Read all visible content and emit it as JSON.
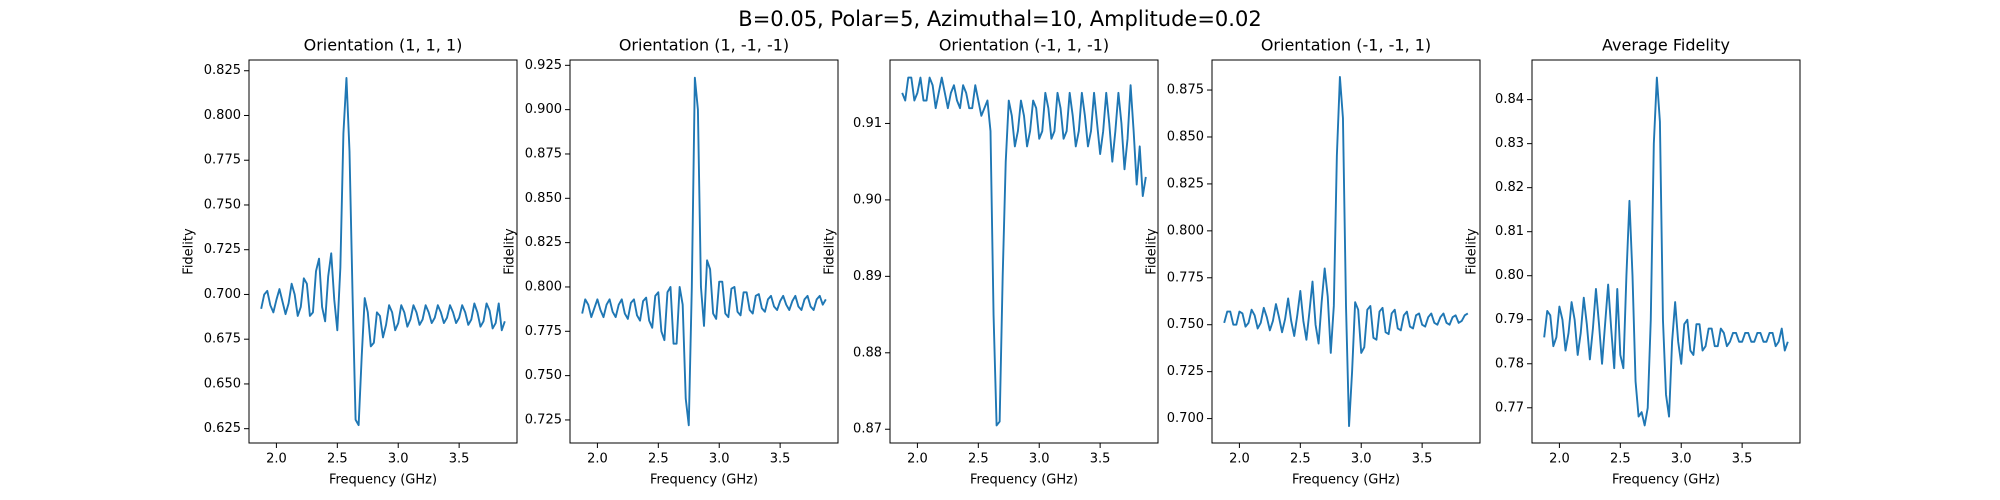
{
  "title": "B=0.05, Polar=5, Azimuthal=10, Amplitude=0.02",
  "chart_data": [
    {
      "type": "line",
      "title": "Orientation (1, 1, 1)",
      "xlabel": "Frequency (GHz)",
      "ylabel": "Fidelity",
      "color": "#1f77b4",
      "x": [
        1.875,
        1.9,
        1.925,
        1.95,
        1.975,
        2.0,
        2.025,
        2.05,
        2.075,
        2.1,
        2.125,
        2.15,
        2.175,
        2.2,
        2.225,
        2.25,
        2.275,
        2.3,
        2.325,
        2.35,
        2.375,
        2.4,
        2.425,
        2.45,
        2.475,
        2.5,
        2.525,
        2.55,
        2.575,
        2.6,
        2.625,
        2.65,
        2.675,
        2.7,
        2.725,
        2.75,
        2.775,
        2.8,
        2.825,
        2.85,
        2.875,
        2.9,
        2.925,
        2.95,
        2.975,
        3.0,
        3.025,
        3.05,
        3.075,
        3.1,
        3.125,
        3.15,
        3.175,
        3.2,
        3.225,
        3.25,
        3.275,
        3.3,
        3.325,
        3.35,
        3.375,
        3.4,
        3.425,
        3.45,
        3.475,
        3.5,
        3.525,
        3.55,
        3.575,
        3.6,
        3.625,
        3.65,
        3.675,
        3.7,
        3.725,
        3.75,
        3.775,
        3.8,
        3.825,
        3.85,
        3.875
      ],
      "values": [
        0.692,
        0.7,
        0.702,
        0.694,
        0.69,
        0.697,
        0.703,
        0.696,
        0.689,
        0.695,
        0.706,
        0.7,
        0.688,
        0.693,
        0.709,
        0.706,
        0.688,
        0.69,
        0.713,
        0.72,
        0.693,
        0.685,
        0.71,
        0.723,
        0.697,
        0.68,
        0.715,
        0.79,
        0.821,
        0.78,
        0.7,
        0.63,
        0.627,
        0.665,
        0.698,
        0.69,
        0.671,
        0.673,
        0.69,
        0.688,
        0.676,
        0.683,
        0.694,
        0.69,
        0.68,
        0.684,
        0.694,
        0.69,
        0.682,
        0.686,
        0.694,
        0.69,
        0.683,
        0.686,
        0.694,
        0.69,
        0.684,
        0.687,
        0.694,
        0.69,
        0.684,
        0.687,
        0.694,
        0.69,
        0.684,
        0.687,
        0.694,
        0.69,
        0.683,
        0.686,
        0.695,
        0.69,
        0.682,
        0.685,
        0.695,
        0.691,
        0.681,
        0.684,
        0.695,
        0.68,
        0.685
      ],
      "xlim": [
        1.775,
        3.975
      ],
      "xticks": [
        {
          "value": 2,
          "label": "2.0"
        },
        2.5,
        {
          "value": 3,
          "label": "3.0"
        },
        3.5
      ],
      "ylim": [
        0.617,
        0.831
      ],
      "yticks": [
        0.625,
        {
          "value": 0.65,
          "label": "0.650"
        },
        0.675,
        {
          "value": 0.7,
          "label": "0.700"
        },
        0.725,
        {
          "value": 0.75,
          "label": "0.750"
        },
        0.775,
        {
          "value": 0.8,
          "label": "0.800"
        },
        0.825
      ]
    },
    {
      "type": "line",
      "title": "Orientation (1, -1, -1)",
      "xlabel": "Frequency (GHz)",
      "ylabel": "Fidelity",
      "color": "#1f77b4",
      "x": [
        1.875,
        1.9,
        1.925,
        1.95,
        1.975,
        2.0,
        2.025,
        2.05,
        2.075,
        2.1,
        2.125,
        2.15,
        2.175,
        2.2,
        2.225,
        2.25,
        2.275,
        2.3,
        2.325,
        2.35,
        2.375,
        2.4,
        2.425,
        2.45,
        2.475,
        2.5,
        2.525,
        2.55,
        2.575,
        2.6,
        2.625,
        2.65,
        2.675,
        2.7,
        2.725,
        2.75,
        2.775,
        2.8,
        2.825,
        2.85,
        2.875,
        2.9,
        2.925,
        2.95,
        2.975,
        3.0,
        3.025,
        3.05,
        3.075,
        3.1,
        3.125,
        3.15,
        3.175,
        3.2,
        3.225,
        3.25,
        3.275,
        3.3,
        3.325,
        3.35,
        3.375,
        3.4,
        3.425,
        3.45,
        3.475,
        3.5,
        3.525,
        3.55,
        3.575,
        3.6,
        3.625,
        3.65,
        3.675,
        3.7,
        3.725,
        3.75,
        3.775,
        3.8,
        3.825,
        3.85,
        3.875
      ],
      "values": [
        0.785,
        0.793,
        0.79,
        0.783,
        0.788,
        0.793,
        0.787,
        0.783,
        0.79,
        0.793,
        0.786,
        0.783,
        0.79,
        0.793,
        0.785,
        0.782,
        0.791,
        0.793,
        0.784,
        0.781,
        0.792,
        0.794,
        0.781,
        0.777,
        0.795,
        0.797,
        0.775,
        0.77,
        0.797,
        0.8,
        0.768,
        0.768,
        0.8,
        0.79,
        0.737,
        0.722,
        0.8,
        0.918,
        0.9,
        0.8,
        0.778,
        0.815,
        0.81,
        0.785,
        0.782,
        0.803,
        0.803,
        0.785,
        0.783,
        0.799,
        0.8,
        0.786,
        0.784,
        0.797,
        0.797,
        0.787,
        0.785,
        0.795,
        0.796,
        0.788,
        0.786,
        0.793,
        0.795,
        0.789,
        0.787,
        0.792,
        0.795,
        0.79,
        0.787,
        0.792,
        0.795,
        0.789,
        0.787,
        0.793,
        0.795,
        0.789,
        0.787,
        0.793,
        0.795,
        0.79,
        0.793
      ],
      "xlim": [
        1.775,
        3.975
      ],
      "xticks": [
        {
          "value": 2,
          "label": "2.0"
        },
        2.5,
        {
          "value": 3,
          "label": "3.0"
        },
        3.5
      ],
      "ylim": [
        0.712,
        0.928
      ],
      "yticks": [
        0.725,
        {
          "value": 0.75,
          "label": "0.750"
        },
        0.775,
        {
          "value": 0.8,
          "label": "0.800"
        },
        0.825,
        {
          "value": 0.85,
          "label": "0.850"
        },
        0.875,
        {
          "value": 0.9,
          "label": "0.900"
        },
        0.925
      ]
    },
    {
      "type": "line",
      "title": "Orientation (-1, 1, -1)",
      "xlabel": "Frequency (GHz)",
      "ylabel": "Fidelity",
      "color": "#1f77b4",
      "x": [
        1.875,
        1.9,
        1.925,
        1.95,
        1.975,
        2.0,
        2.025,
        2.05,
        2.075,
        2.1,
        2.125,
        2.15,
        2.175,
        2.2,
        2.225,
        2.25,
        2.275,
        2.3,
        2.325,
        2.35,
        2.375,
        2.4,
        2.425,
        2.45,
        2.475,
        2.5,
        2.525,
        2.55,
        2.575,
        2.6,
        2.625,
        2.65,
        2.675,
        2.7,
        2.725,
        2.75,
        2.775,
        2.8,
        2.825,
        2.85,
        2.875,
        2.9,
        2.925,
        2.95,
        2.975,
        3.0,
        3.025,
        3.05,
        3.075,
        3.1,
        3.125,
        3.15,
        3.175,
        3.2,
        3.225,
        3.25,
        3.275,
        3.3,
        3.325,
        3.35,
        3.375,
        3.4,
        3.425,
        3.45,
        3.475,
        3.5,
        3.525,
        3.55,
        3.575,
        3.6,
        3.625,
        3.65,
        3.675,
        3.7,
        3.725,
        3.75,
        3.775,
        3.8,
        3.825,
        3.85,
        3.875
      ],
      "values": [
        0.914,
        0.913,
        0.916,
        0.916,
        0.913,
        0.914,
        0.916,
        0.913,
        0.913,
        0.916,
        0.915,
        0.912,
        0.914,
        0.916,
        0.914,
        0.912,
        0.914,
        0.915,
        0.913,
        0.912,
        0.915,
        0.914,
        0.912,
        0.912,
        0.915,
        0.913,
        0.911,
        0.912,
        0.913,
        0.909,
        0.885,
        0.8705,
        0.871,
        0.89,
        0.905,
        0.913,
        0.911,
        0.907,
        0.909,
        0.913,
        0.911,
        0.907,
        0.909,
        0.913,
        0.912,
        0.908,
        0.909,
        0.914,
        0.912,
        0.908,
        0.909,
        0.914,
        0.912,
        0.908,
        0.909,
        0.914,
        0.911,
        0.907,
        0.909,
        0.914,
        0.911,
        0.907,
        0.909,
        0.914,
        0.91,
        0.906,
        0.909,
        0.914,
        0.91,
        0.905,
        0.909,
        0.914,
        0.91,
        0.904,
        0.908,
        0.915,
        0.909,
        0.902,
        0.907,
        0.9005,
        0.903
      ],
      "xlim": [
        1.775,
        3.975
      ],
      "xticks": [
        {
          "value": 2,
          "label": "2.0"
        },
        2.5,
        {
          "value": 3,
          "label": "3.0"
        },
        3.5
      ],
      "ylim": [
        0.8682,
        0.9183
      ],
      "yticks": [
        0.87,
        0.88,
        0.89,
        {
          "value": 0.9,
          "label": "0.90"
        },
        0.91
      ]
    },
    {
      "type": "line",
      "title": "Orientation (-1, -1, 1)",
      "xlabel": "Frequency (GHz)",
      "ylabel": "Fidelity",
      "color": "#1f77b4",
      "x": [
        1.875,
        1.9,
        1.925,
        1.95,
        1.975,
        2.0,
        2.025,
        2.05,
        2.075,
        2.1,
        2.125,
        2.15,
        2.175,
        2.2,
        2.225,
        2.25,
        2.275,
        2.3,
        2.325,
        2.35,
        2.375,
        2.4,
        2.425,
        2.45,
        2.475,
        2.5,
        2.525,
        2.55,
        2.575,
        2.6,
        2.625,
        2.65,
        2.675,
        2.7,
        2.725,
        2.75,
        2.775,
        2.8,
        2.825,
        2.85,
        2.875,
        2.9,
        2.925,
        2.95,
        2.975,
        3.0,
        3.025,
        3.05,
        3.075,
        3.1,
        3.125,
        3.15,
        3.175,
        3.2,
        3.225,
        3.25,
        3.275,
        3.3,
        3.325,
        3.35,
        3.375,
        3.4,
        3.425,
        3.45,
        3.475,
        3.5,
        3.525,
        3.55,
        3.575,
        3.6,
        3.625,
        3.65,
        3.675,
        3.7,
        3.725,
        3.75,
        3.775,
        3.8,
        3.825,
        3.85,
        3.875
      ],
      "values": [
        0.751,
        0.757,
        0.757,
        0.75,
        0.75,
        0.757,
        0.756,
        0.749,
        0.751,
        0.758,
        0.755,
        0.748,
        0.751,
        0.759,
        0.754,
        0.747,
        0.752,
        0.761,
        0.754,
        0.746,
        0.753,
        0.764,
        0.752,
        0.744,
        0.755,
        0.768,
        0.752,
        0.742,
        0.757,
        0.773,
        0.75,
        0.74,
        0.762,
        0.78,
        0.765,
        0.735,
        0.76,
        0.84,
        0.882,
        0.86,
        0.76,
        0.696,
        0.725,
        0.762,
        0.758,
        0.735,
        0.738,
        0.758,
        0.76,
        0.743,
        0.742,
        0.757,
        0.759,
        0.746,
        0.745,
        0.756,
        0.758,
        0.748,
        0.747,
        0.755,
        0.757,
        0.749,
        0.748,
        0.755,
        0.756,
        0.75,
        0.749,
        0.754,
        0.756,
        0.751,
        0.75,
        0.754,
        0.756,
        0.751,
        0.75,
        0.754,
        0.755,
        0.751,
        0.752,
        0.755,
        0.756
      ],
      "xlim": [
        1.775,
        3.975
      ],
      "xticks": [
        {
          "value": 2,
          "label": "2.0"
        },
        2.5,
        {
          "value": 3,
          "label": "3.0"
        },
        3.5
      ],
      "ylim": [
        0.687,
        0.891
      ],
      "yticks": [
        {
          "value": 0.7,
          "label": "0.700"
        },
        0.725,
        {
          "value": 0.75,
          "label": "0.750"
        },
        0.775,
        {
          "value": 0.8,
          "label": "0.800"
        },
        0.825,
        {
          "value": 0.85,
          "label": "0.850"
        },
        0.875
      ]
    },
    {
      "type": "line",
      "title": "Average Fidelity",
      "xlabel": "Frequency (GHz)",
      "ylabel": "Fidelity",
      "color": "#1f77b4",
      "x": [
        1.875,
        1.9,
        1.925,
        1.95,
        1.975,
        2.0,
        2.025,
        2.05,
        2.075,
        2.1,
        2.125,
        2.15,
        2.175,
        2.2,
        2.225,
        2.25,
        2.275,
        2.3,
        2.325,
        2.35,
        2.375,
        2.4,
        2.425,
        2.45,
        2.475,
        2.5,
        2.525,
        2.55,
        2.575,
        2.6,
        2.625,
        2.65,
        2.675,
        2.7,
        2.725,
        2.75,
        2.775,
        2.8,
        2.825,
        2.85,
        2.875,
        2.9,
        2.925,
        2.95,
        2.975,
        3.0,
        3.025,
        3.05,
        3.075,
        3.1,
        3.125,
        3.15,
        3.175,
        3.2,
        3.225,
        3.25,
        3.275,
        3.3,
        3.325,
        3.35,
        3.375,
        3.4,
        3.425,
        3.45,
        3.475,
        3.5,
        3.525,
        3.55,
        3.575,
        3.6,
        3.625,
        3.65,
        3.675,
        3.7,
        3.725,
        3.75,
        3.775,
        3.8,
        3.825,
        3.85,
        3.875
      ],
      "values": [
        0.786,
        0.792,
        0.791,
        0.784,
        0.786,
        0.793,
        0.79,
        0.783,
        0.787,
        0.794,
        0.79,
        0.782,
        0.787,
        0.795,
        0.789,
        0.781,
        0.788,
        0.797,
        0.789,
        0.78,
        0.789,
        0.798,
        0.788,
        0.779,
        0.797,
        0.782,
        0.779,
        0.8,
        0.817,
        0.8,
        0.776,
        0.768,
        0.769,
        0.766,
        0.77,
        0.79,
        0.83,
        0.845,
        0.835,
        0.79,
        0.773,
        0.768,
        0.785,
        0.794,
        0.785,
        0.78,
        0.789,
        0.79,
        0.783,
        0.782,
        0.789,
        0.789,
        0.783,
        0.784,
        0.788,
        0.788,
        0.784,
        0.784,
        0.788,
        0.787,
        0.784,
        0.785,
        0.787,
        0.787,
        0.785,
        0.785,
        0.787,
        0.787,
        0.785,
        0.785,
        0.787,
        0.787,
        0.785,
        0.785,
        0.787,
        0.787,
        0.784,
        0.785,
        0.788,
        0.783,
        0.785
      ],
      "xlim": [
        1.775,
        3.975
      ],
      "xticks": [
        {
          "value": 2,
          "label": "2.0"
        },
        2.5,
        {
          "value": 3,
          "label": "3.0"
        },
        3.5
      ],
      "ylim": [
        0.762,
        0.849
      ],
      "yticks": [
        0.77,
        0.78,
        0.79,
        {
          "value": 0.8,
          "label": "0.80"
        },
        0.81,
        0.82,
        0.83,
        0.84
      ]
    }
  ]
}
